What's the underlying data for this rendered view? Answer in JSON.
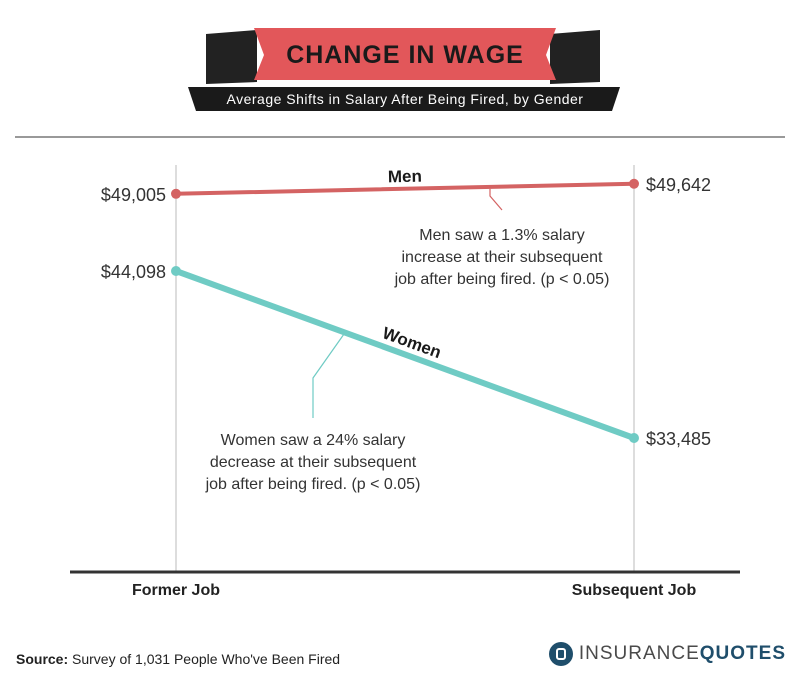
{
  "header": {
    "title": "CHANGE IN WAGE",
    "subtitle": "Average Shifts in Salary After Being Fired, by Gender"
  },
  "colors": {
    "men": "#d46363",
    "women": "#6fcbc4",
    "banner": "#e2575a",
    "banner_shadow": "#222222",
    "axis": "#333333",
    "guide": "#bbbbbb"
  },
  "chart_data": {
    "type": "line",
    "categories": [
      "Former Job",
      "Subsequent Job"
    ],
    "series": [
      {
        "name": "Men",
        "values": [
          49005,
          49642
        ],
        "labels": [
          "$49,005",
          "$49,642"
        ]
      },
      {
        "name": "Women",
        "values": [
          44098,
          33485
        ],
        "labels": [
          "$44,098",
          "$33,485"
        ]
      }
    ],
    "annotations": [
      {
        "series": "Men",
        "lines": [
          "Men saw a 1.3% salary",
          "increase at their subsequent",
          "job after being fired. (p < 0.05)"
        ]
      },
      {
        "series": "Women",
        "lines": [
          "Women saw a 24% salary",
          "decrease at their subsequent",
          "job after being fired. (p < 0.05)"
        ]
      }
    ],
    "grid": false,
    "legend": "none"
  },
  "footer": {
    "source_label": "Source:",
    "source_text": "Survey of 1,031 People Who've Been Fired",
    "logo_part1": "INSURANCE",
    "logo_part2": "QUOTES"
  }
}
